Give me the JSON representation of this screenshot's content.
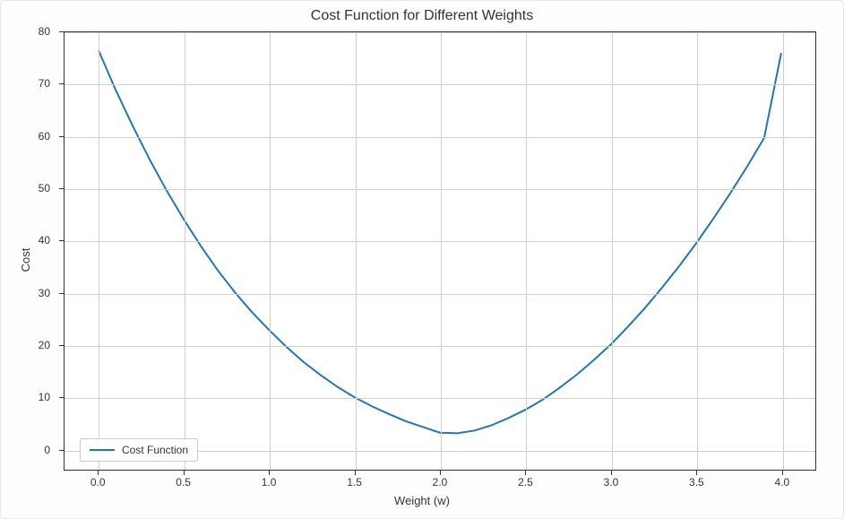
{
  "chart": {
    "type": "line",
    "title": "Cost Function for Different Weights",
    "title_fontsize": 16,
    "xlabel": "Weight (w)",
    "ylabel": "Cost",
    "label_fontsize": 13,
    "tick_fontsize": 12,
    "xlim": [
      -0.2,
      4.2
    ],
    "ylim": [
      -4,
      80
    ],
    "xticks": [
      0.0,
      0.5,
      1.0,
      1.5,
      2.0,
      2.5,
      3.0,
      3.5,
      4.0
    ],
    "xtick_labels": [
      "0.0",
      "0.5",
      "1.0",
      "1.5",
      "2.0",
      "2.5",
      "3.0",
      "3.5",
      "4.0"
    ],
    "yticks": [
      0,
      10,
      20,
      30,
      40,
      50,
      60,
      70,
      80
    ],
    "ytick_labels": [
      "0",
      "10",
      "20",
      "30",
      "40",
      "50",
      "60",
      "70",
      "80"
    ],
    "grid": true,
    "grid_color": "#cfcfcf",
    "background_color": "#ffffff",
    "border_color": "#333333",
    "line_color": "#1f77b4",
    "line_width": 2,
    "legend_label": "Cost Function",
    "legend_position": "lower-left",
    "legend_border_color": "#cccccc",
    "series": {
      "x": [
        0.0,
        0.1,
        0.2,
        0.3,
        0.4,
        0.5,
        0.6,
        0.7,
        0.8,
        0.9,
        1.0,
        1.1,
        1.2,
        1.3,
        1.4,
        1.5,
        1.6,
        1.7,
        1.8,
        1.9,
        2.0,
        2.1,
        2.2,
        2.3,
        2.4,
        2.5,
        2.6,
        2.7,
        2.8,
        2.9,
        3.0,
        3.1,
        3.2,
        3.3,
        3.4,
        3.5,
        3.6,
        3.7,
        3.8,
        3.9,
        4.0
      ],
      "y": [
        76.5,
        68.9,
        62.0,
        55.5,
        49.5,
        44.0,
        38.9,
        34.2,
        30.0,
        26.2,
        22.8,
        19.6,
        16.7,
        14.2,
        11.9,
        9.9,
        8.2,
        6.7,
        5.3,
        4.2,
        3.1,
        3.0,
        3.5,
        4.5,
        5.9,
        7.5,
        9.4,
        11.7,
        14.2,
        17.0,
        20.0,
        23.4,
        27.0,
        30.9,
        35.0,
        39.4,
        44.1,
        49.0,
        54.2,
        59.7,
        76.0
      ]
    }
  }
}
